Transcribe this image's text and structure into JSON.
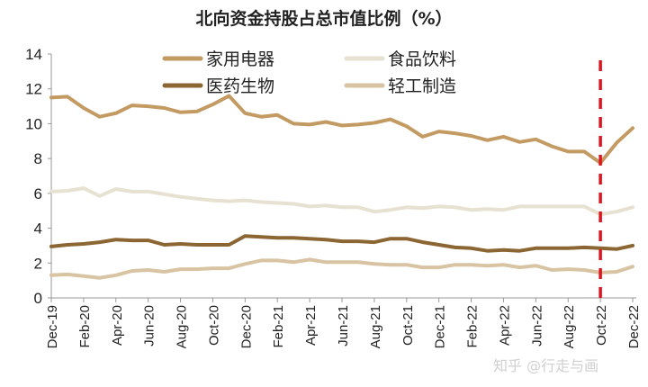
{
  "chart_data": {
    "type": "line",
    "title": "北向资金持股占总市值比例（%）",
    "xlabel": "",
    "ylabel": "",
    "ylim": [
      0,
      14
    ],
    "yticks": [
      0,
      2,
      4,
      6,
      8,
      10,
      12,
      14
    ],
    "grid": false,
    "legend_position": "top",
    "x": [
      "Dec-19",
      "Jan-20",
      "Feb-20",
      "Mar-20",
      "Apr-20",
      "May-20",
      "Jun-20",
      "Jul-20",
      "Aug-20",
      "Sep-20",
      "Oct-20",
      "Nov-20",
      "Dec-20",
      "Jan-21",
      "Feb-21",
      "Mar-21",
      "Apr-21",
      "May-21",
      "Jun-21",
      "Jul-21",
      "Aug-21",
      "Sep-21",
      "Oct-21",
      "Nov-21",
      "Dec-21",
      "Jan-22",
      "Feb-22",
      "Mar-22",
      "Apr-22",
      "May-22",
      "Jun-22",
      "Jul-22",
      "Aug-22",
      "Sep-22",
      "Oct-22",
      "Nov-22",
      "Dec-22"
    ],
    "xtick_labels": [
      "Dec-19",
      "Feb-20",
      "Apr-20",
      "Jun-20",
      "Aug-20",
      "Oct-20",
      "Dec-20",
      "Feb-21",
      "Apr-21",
      "Jun-21",
      "Aug-21",
      "Oct-21",
      "Dec-21",
      "Feb-22",
      "Apr-22",
      "Jun-22",
      "Aug-22",
      "Oct-22",
      "Dec-22"
    ],
    "series": [
      {
        "name": "家用电器",
        "color": "#C49A63",
        "values": [
          11.5,
          11.55,
          10.9,
          10.4,
          10.6,
          11.05,
          11.0,
          10.9,
          10.65,
          10.7,
          11.1,
          11.6,
          10.6,
          10.4,
          10.5,
          10.0,
          9.95,
          10.1,
          9.9,
          9.95,
          10.05,
          10.25,
          9.85,
          9.25,
          9.55,
          9.45,
          9.3,
          9.05,
          9.25,
          8.95,
          9.1,
          8.7,
          8.4,
          8.4,
          7.75,
          8.9,
          9.75
        ]
      },
      {
        "name": "食品饮料",
        "color": "#E6E1D0",
        "values": [
          6.1,
          6.15,
          6.3,
          5.85,
          6.25,
          6.1,
          6.1,
          5.95,
          5.8,
          5.7,
          5.6,
          5.55,
          5.6,
          5.5,
          5.45,
          5.4,
          5.25,
          5.3,
          5.2,
          5.2,
          4.95,
          5.05,
          5.2,
          5.15,
          5.25,
          5.2,
          5.05,
          5.1,
          5.05,
          5.25,
          5.25,
          5.25,
          5.25,
          5.25,
          4.8,
          4.95,
          5.2
        ]
      },
      {
        "name": "医药生物",
        "color": "#8B6532",
        "values": [
          2.95,
          3.05,
          3.1,
          3.2,
          3.35,
          3.3,
          3.3,
          3.05,
          3.1,
          3.05,
          3.05,
          3.05,
          3.55,
          3.5,
          3.45,
          3.45,
          3.4,
          3.35,
          3.25,
          3.25,
          3.2,
          3.4,
          3.4,
          3.2,
          3.05,
          2.9,
          2.85,
          2.7,
          2.75,
          2.7,
          2.85,
          2.85,
          2.85,
          2.9,
          2.85,
          2.8,
          3.0
        ]
      },
      {
        "name": "轻工制造",
        "color": "#D8C3A3",
        "values": [
          1.3,
          1.35,
          1.25,
          1.15,
          1.3,
          1.55,
          1.6,
          1.5,
          1.65,
          1.65,
          1.7,
          1.7,
          1.95,
          2.15,
          2.15,
          2.05,
          2.2,
          2.05,
          2.05,
          2.05,
          1.95,
          1.9,
          1.9,
          1.75,
          1.75,
          1.9,
          1.9,
          1.85,
          1.9,
          1.75,
          1.85,
          1.6,
          1.65,
          1.6,
          1.45,
          1.5,
          1.8
        ]
      }
    ],
    "annotations": [
      {
        "type": "vertical-dashed-line",
        "x": "Oct-22",
        "color": "#E0141E"
      }
    ]
  },
  "watermark": "知乎 @行走与画"
}
